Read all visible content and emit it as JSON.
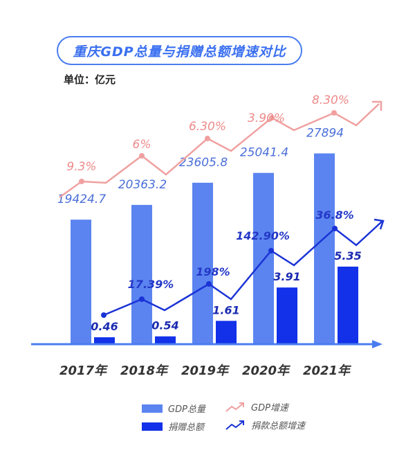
{
  "title": "重庆GDP总量与捐赠总额增速对比",
  "unit": "单位：亿元",
  "colors": {
    "gdp_bar": "#5b84f0",
    "donation_bar": "#1231e8",
    "gdp_growth": "#f0a0a0",
    "donation_growth": "#1a33d6",
    "axis": "#4a7cf0"
  },
  "legend": {
    "gdp_total": "GDP总量",
    "donation_total": "捐赠总额",
    "gdp_growth": "GDP增速",
    "donation_growth": "捐款总额增速"
  },
  "chart_data": {
    "type": "bar",
    "categories": [
      "2017年",
      "2018年",
      "2019年",
      "2020年",
      "2021年"
    ],
    "series": [
      {
        "name": "GDP总量",
        "type": "bar",
        "values": [
          19424.7,
          20363.2,
          23605.8,
          25041.4,
          27894
        ],
        "labels": [
          "19424.7",
          "20363.2",
          "23605.8",
          "25041.4",
          "27894"
        ]
      },
      {
        "name": "捐赠总额",
        "type": "bar",
        "values": [
          0.46,
          0.54,
          1.61,
          3.91,
          5.35
        ],
        "labels": [
          "0.46",
          "0.54",
          "1.61",
          "3.91",
          "5.35"
        ]
      },
      {
        "name": "GDP增速",
        "type": "line",
        "values": [
          9.3,
          6,
          6.3,
          3.9,
          8.3
        ],
        "labels": [
          "9.3%",
          "6%",
          "6.30%",
          "3.90%",
          "8.30%"
        ]
      },
      {
        "name": "捐款总额增速",
        "type": "line",
        "values": [
          null,
          17.39,
          198,
          142.9,
          36.8
        ],
        "labels": [
          "",
          "17.39%",
          "198%",
          "142.90%",
          "36.8%"
        ]
      }
    ]
  }
}
